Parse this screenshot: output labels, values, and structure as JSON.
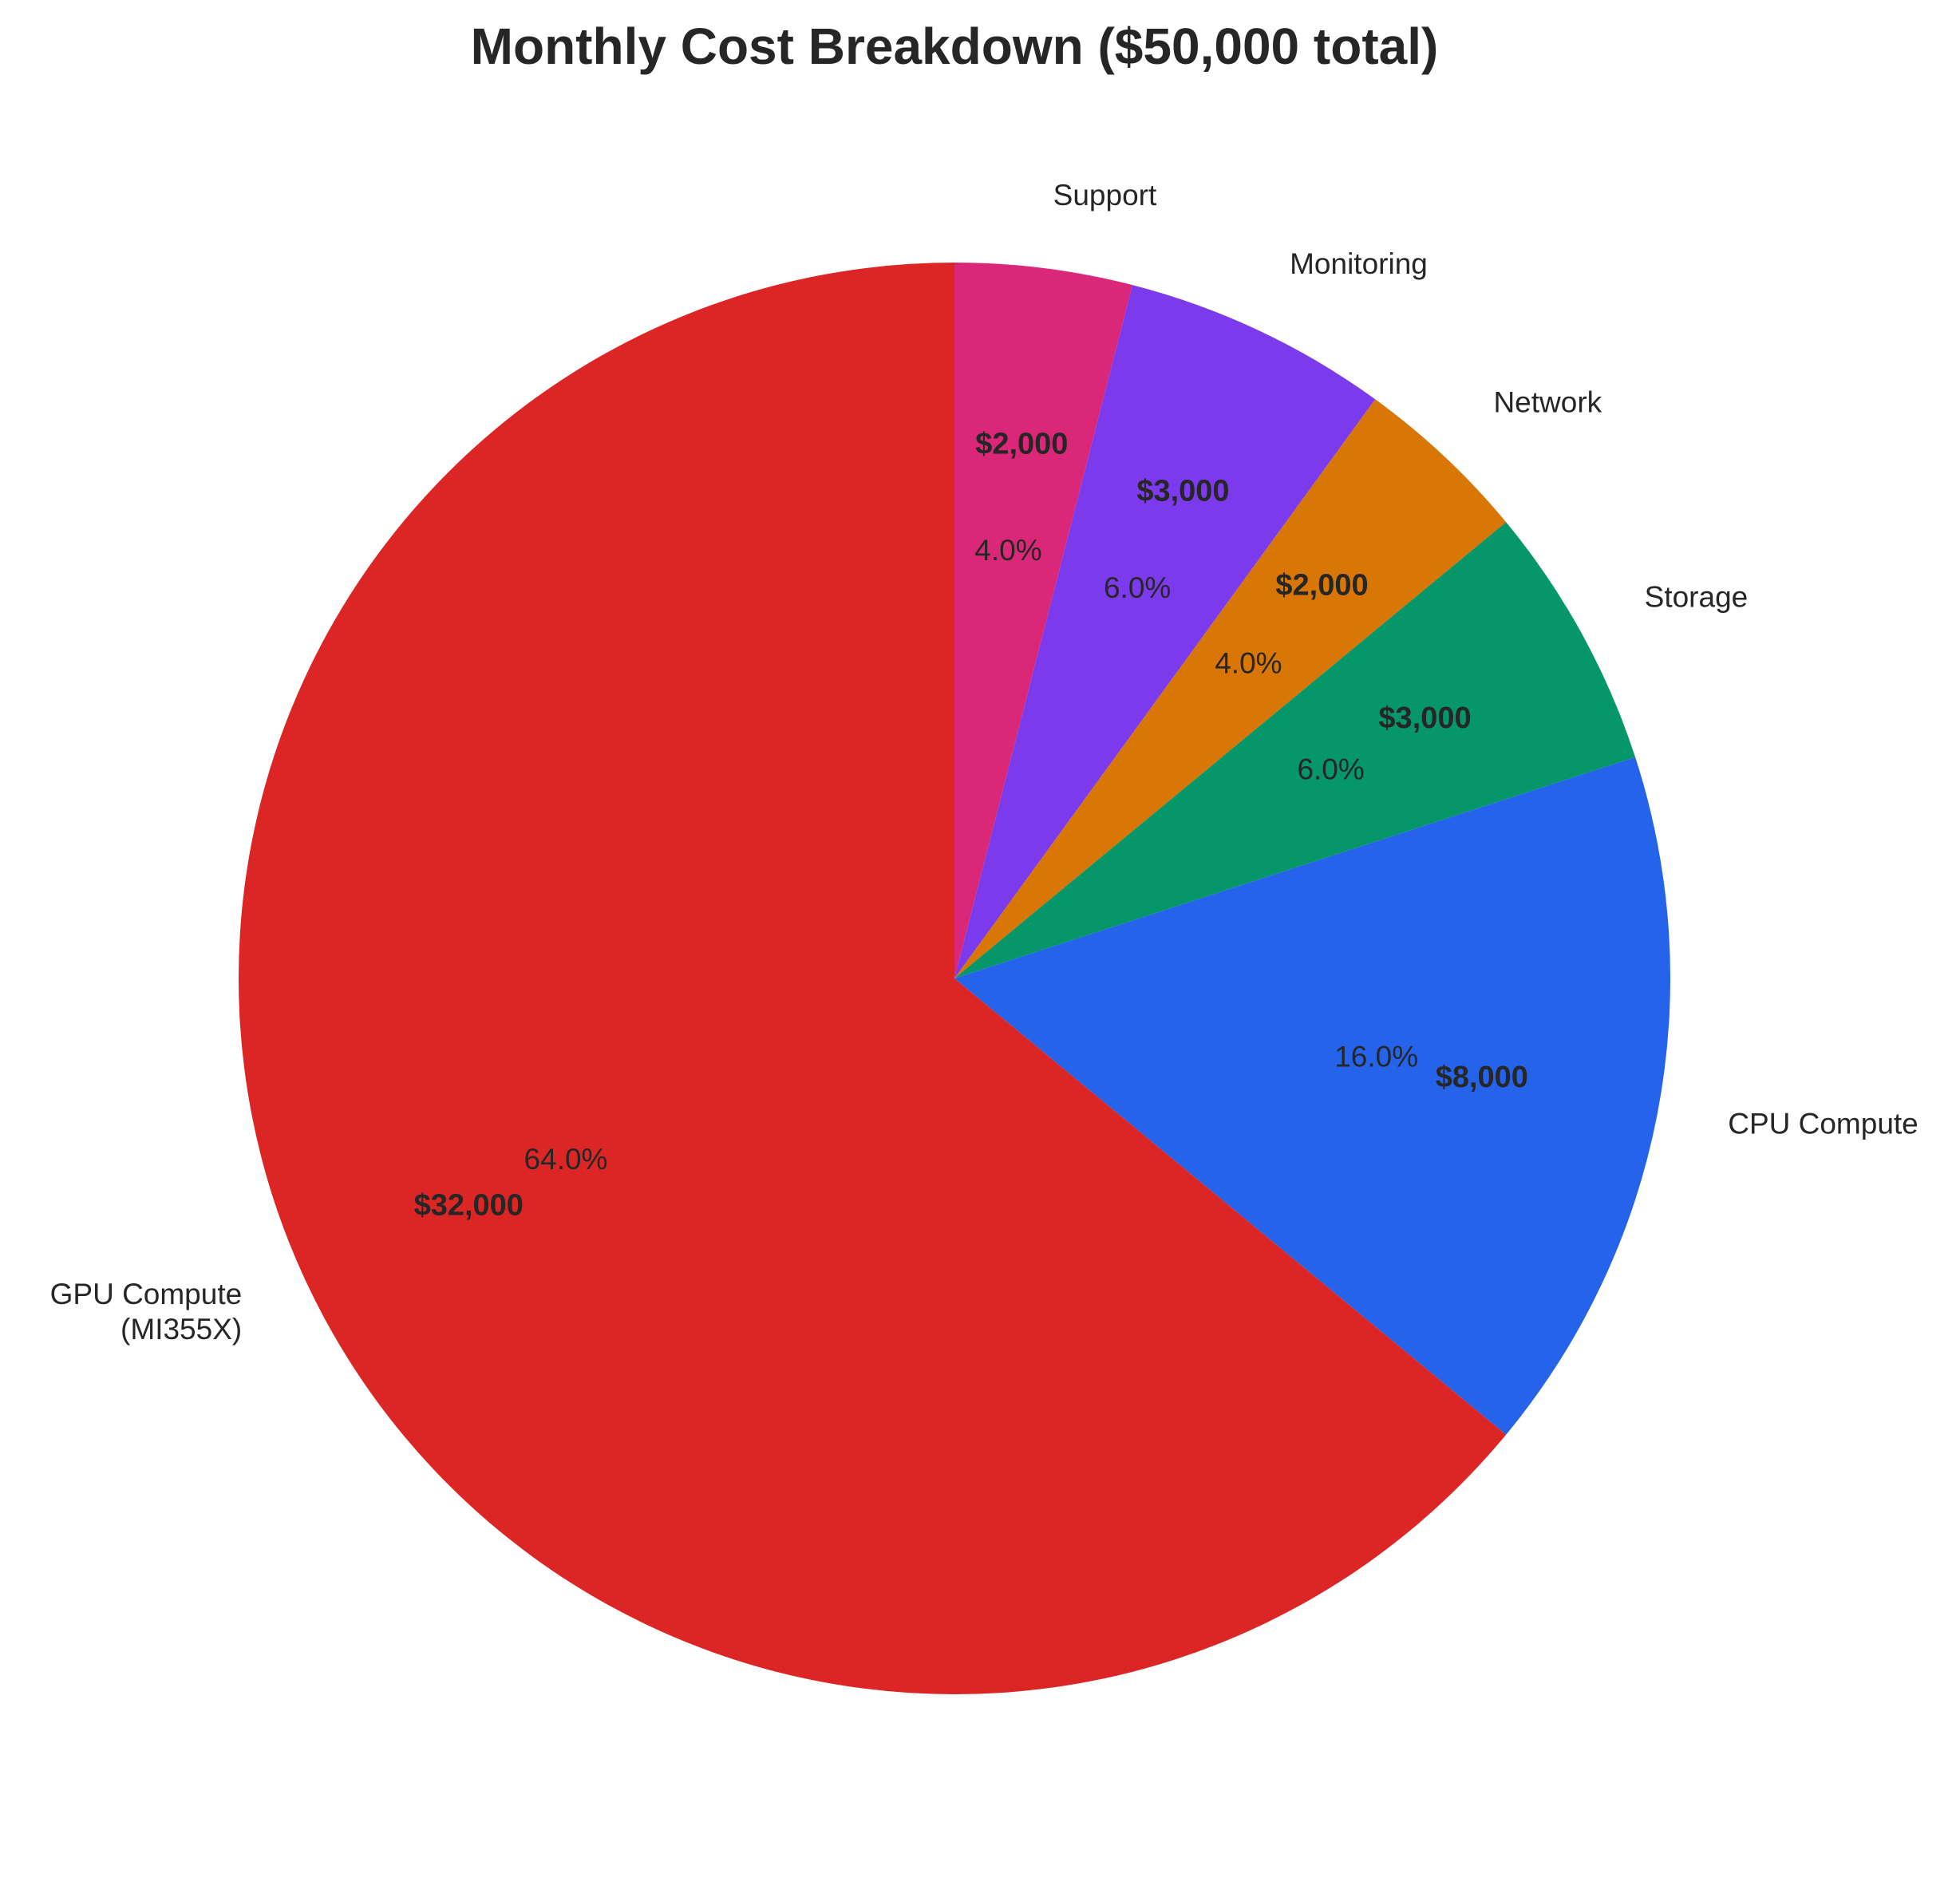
{
  "chart_data": {
    "type": "pie",
    "title": "Monthly Cost Breakdown ($50,000 total)",
    "start_angle_deg": 90,
    "direction": "clockwise-from-top-right",
    "slices": [
      {
        "label": [
          "Support"
        ],
        "value": 2000,
        "percent_label": "4.0%",
        "amount_label": "$2,000",
        "color": "#db2777"
      },
      {
        "label": [
          "Monitoring"
        ],
        "value": 3000,
        "percent_label": "6.0%",
        "amount_label": "$3,000",
        "color": "#7c3aed"
      },
      {
        "label": [
          "Network"
        ],
        "value": 2000,
        "percent_label": "4.0%",
        "amount_label": "$2,000",
        "color": "#d97706"
      },
      {
        "label": [
          "Storage"
        ],
        "value": 3000,
        "percent_label": "6.0%",
        "amount_label": "$3,000",
        "color": "#059669"
      },
      {
        "label": [
          "CPU Compute"
        ],
        "value": 8000,
        "percent_label": "16.0%",
        "amount_label": "$8,000",
        "color": "#2563eb"
      },
      {
        "label": [
          "GPU Compute",
          "(MI355X)"
        ],
        "value": 32000,
        "percent_label": "64.0%",
        "amount_label": "$32,000",
        "color": "#dc2626"
      }
    ]
  }
}
